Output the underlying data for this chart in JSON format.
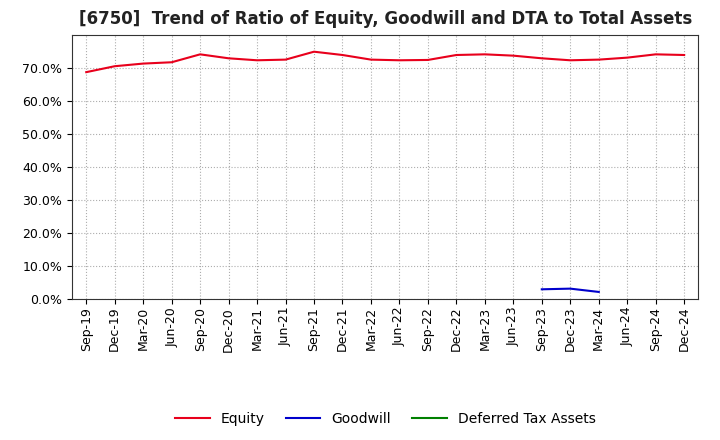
{
  "title": "[6750]  Trend of Ratio of Equity, Goodwill and DTA to Total Assets",
  "x_labels": [
    "Sep-19",
    "Dec-19",
    "Mar-20",
    "Jun-20",
    "Sep-20",
    "Dec-20",
    "Mar-21",
    "Jun-21",
    "Sep-21",
    "Dec-21",
    "Mar-22",
    "Jun-22",
    "Sep-22",
    "Dec-22",
    "Mar-23",
    "Jun-23",
    "Sep-23",
    "Dec-23",
    "Mar-24",
    "Jun-24",
    "Sep-24",
    "Dec-24"
  ],
  "equity": [
    0.688,
    0.706,
    0.714,
    0.718,
    0.742,
    0.73,
    0.724,
    0.726,
    0.75,
    0.74,
    0.726,
    0.724,
    0.725,
    0.74,
    0.742,
    0.738,
    0.73,
    0.724,
    0.726,
    0.732,
    0.742,
    0.74
  ],
  "goodwill": [
    null,
    null,
    null,
    null,
    null,
    null,
    null,
    null,
    null,
    null,
    null,
    null,
    null,
    null,
    null,
    null,
    0.03,
    0.032,
    0.022,
    null,
    null,
    null
  ],
  "dta": [
    null,
    null,
    null,
    null,
    null,
    null,
    null,
    null,
    null,
    null,
    null,
    null,
    null,
    null,
    null,
    null,
    null,
    null,
    null,
    null,
    null,
    null
  ],
  "equity_color": "#e8001c",
  "goodwill_color": "#0000cc",
  "dta_color": "#008000",
  "background_color": "#ffffff",
  "grid_color": "#999999",
  "ylim": [
    0.0,
    0.8
  ],
  "yticks": [
    0.0,
    0.1,
    0.2,
    0.3,
    0.4,
    0.5,
    0.6,
    0.7
  ],
  "legend_labels": [
    "Equity",
    "Goodwill",
    "Deferred Tax Assets"
  ],
  "title_fontsize": 12,
  "tick_fontsize": 9,
  "legend_fontsize": 10
}
